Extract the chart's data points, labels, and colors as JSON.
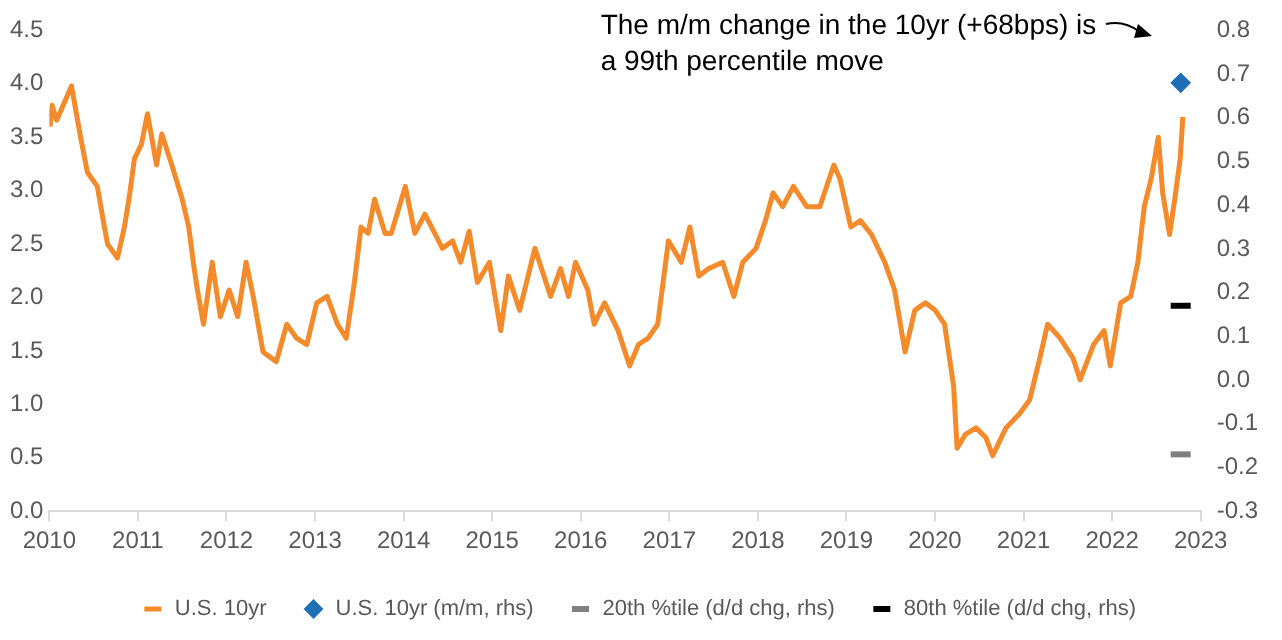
{
  "chart_data": {
    "type": "line",
    "annotations": [
      "The m/m change in the 10yr (+68bps) is a 99th percentile move"
    ],
    "xlim": [
      "2010",
      "2023"
    ],
    "xticks": [
      "2010",
      "2011",
      "2012",
      "2013",
      "2014",
      "2015",
      "2016",
      "2017",
      "2018",
      "2019",
      "2020",
      "2021",
      "2022",
      "2023"
    ],
    "ylim": [
      0,
      4.5
    ],
    "yticks": [
      {
        "value": 0,
        "label": "0.0"
      },
      0.5,
      {
        "value": 1,
        "label": "1.0"
      },
      1.5,
      {
        "value": 2,
        "label": "2.0"
      },
      2.5,
      {
        "value": 3,
        "label": "3.0"
      },
      3.5,
      {
        "value": 4,
        "label": "4.0"
      },
      4.5
    ],
    "y2lim": [
      -0.3,
      0.8
    ],
    "y2ticks": [
      -0.3,
      -0.2,
      -0.1,
      {
        "value": 0,
        "label": "0.0"
      },
      0.1,
      0.2,
      0.3,
      0.4,
      0.5,
      0.6,
      0.7,
      0.8
    ],
    "grid": false,
    "legend": "bottom",
    "series": [
      {
        "name": "U.S. 10yr",
        "color": "#f58a2a",
        "marker": "none",
        "x": [
          "2010-01-04",
          "2010-01-12",
          "2010-02-01",
          "2010-03-01",
          "2010-04-01",
          "2010-05-08",
          "2010-06-06",
          "2010-07-16",
          "2010-08-15",
          "2010-08-28",
          "2010-10-08",
          "2010-11-06",
          "2010-11-25",
          "2010-12-17",
          "2011-01-15",
          "2011-02-10",
          "2011-03-17",
          "2011-04-08",
          "2011-05-19",
          "2011-07-01",
          "2011-07-28",
          "2011-08-18",
          "2011-09-03",
          "2011-09-28",
          "2011-11-03",
          "2011-12-06",
          "2012-01-12",
          "2012-02-17",
          "2012-03-21",
          "2012-04-20",
          "2012-05-30",
          "2012-07-24",
          "2012-09-06",
          "2012-10-16",
          "2012-11-28",
          "2013-01-08",
          "2013-02-20",
          "2013-04-02",
          "2013-05-08",
          "2013-06-11",
          "2013-07-08",
          "2013-08-07",
          "2013-09-03",
          "2013-10-16",
          "2013-11-11",
          "2014-01-08",
          "2014-02-17",
          "2014-03-28",
          "2014-06-09",
          "2014-07-20",
          "2014-08-23",
          "2014-09-28",
          "2014-11-01",
          "2014-12-20",
          "2015-02-06",
          "2015-03-07",
          "2015-04-23",
          "2015-06-25",
          "2015-08-29",
          "2015-10-09",
          "2015-11-11",
          "2015-12-10",
          "2016-01-30",
          "2016-02-26",
          "2016-04-08",
          "2016-06-03",
          "2016-07-20",
          "2016-08-26",
          "2016-10-05",
          "2016-11-14",
          "2016-12-28",
          "2017-02-20",
          "2017-03-25",
          "2017-05-01",
          "2017-06-10",
          "2017-08-08",
          "2017-09-24",
          "2017-10-30",
          "2017-12-24",
          "2018-02-02",
          "2018-03-03",
          "2018-04-12",
          "2018-05-26",
          "2018-07-20",
          "2018-09-13",
          "2018-11-10",
          "2018-12-05",
          "2019-01-19",
          "2019-02-28",
          "2019-04-13",
          "2019-06-07",
          "2019-07-17",
          "2019-08-30",
          "2019-10-09",
          "2019-11-22",
          "2020-01-02",
          "2020-02-10",
          "2020-03-17",
          "2020-04-01",
          "2020-05-05",
          "2020-06-18",
          "2020-07-28",
          "2020-08-26",
          "2020-10-20",
          "2020-12-14",
          "2021-01-26",
          "2021-03-07",
          "2021-04-09",
          "2021-05-30",
          "2021-07-23",
          "2021-08-21",
          "2021-10-16",
          "2021-11-29",
          "2021-12-24",
          "2022-02-06",
          "2022-03-17",
          "2022-04-16",
          "2022-05-12",
          "2022-06-10",
          "2022-07-09",
          "2022-07-27",
          "2022-08-25",
          "2022-09-16",
          "2022-10-08",
          "2022-10-19"
        ],
        "values": [
          3.6,
          3.8,
          3.66,
          3.82,
          3.98,
          3.5,
          3.17,
          3.04,
          2.66,
          2.5,
          2.37,
          2.66,
          2.92,
          3.3,
          3.43,
          3.72,
          3.24,
          3.53,
          3.24,
          2.92,
          2.66,
          2.3,
          2.07,
          1.75,
          2.33,
          1.82,
          2.07,
          1.82,
          2.33,
          2.01,
          1.49,
          1.4,
          1.75,
          1.62,
          1.56,
          1.95,
          2.01,
          1.75,
          1.62,
          2.14,
          2.66,
          2.6,
          2.92,
          2.6,
          2.6,
          3.04,
          2.6,
          2.78,
          2.46,
          2.53,
          2.33,
          2.62,
          2.14,
          2.33,
          1.69,
          2.2,
          1.88,
          2.46,
          2.01,
          2.27,
          2.01,
          2.33,
          2.07,
          1.75,
          1.95,
          1.69,
          1.36,
          1.56,
          1.62,
          1.75,
          2.53,
          2.33,
          2.66,
          2.2,
          2.27,
          2.33,
          2.01,
          2.33,
          2.46,
          2.72,
          2.98,
          2.85,
          3.04,
          2.85,
          2.85,
          3.24,
          3.11,
          2.66,
          2.72,
          2.59,
          2.33,
          2.07,
          1.49,
          1.88,
          1.95,
          1.88,
          1.75,
          1.17,
          0.59,
          0.72,
          0.78,
          0.69,
          0.52,
          0.78,
          0.91,
          1.04,
          1.43,
          1.75,
          1.62,
          1.43,
          1.23,
          1.56,
          1.69,
          1.36,
          1.95,
          2.01,
          2.33,
          2.85,
          3.11,
          3.5,
          2.98,
          2.59,
          2.92,
          3.3,
          3.69
        ]
      },
      {
        "name": "U.S. 10yr (m/m, rhs)",
        "type": "scatter",
        "axis": "y2",
        "color": "#1f6fb4",
        "marker": "diamond",
        "x": [
          "2022-10-10"
        ],
        "values": [
          0.68
        ]
      },
      {
        "name": "20th %tile (d/d chg, rhs)",
        "type": "scatter",
        "axis": "y2",
        "color": "#808080",
        "x": [
          "2022-10-10"
        ],
        "values": [
          -0.17
        ]
      },
      {
        "name": "80th %tile (d/d chg, rhs)",
        "type": "scatter",
        "axis": "y2",
        "color": "#000000",
        "x": [
          "2022-10-10"
        ],
        "values": [
          0.17
        ]
      }
    ]
  }
}
